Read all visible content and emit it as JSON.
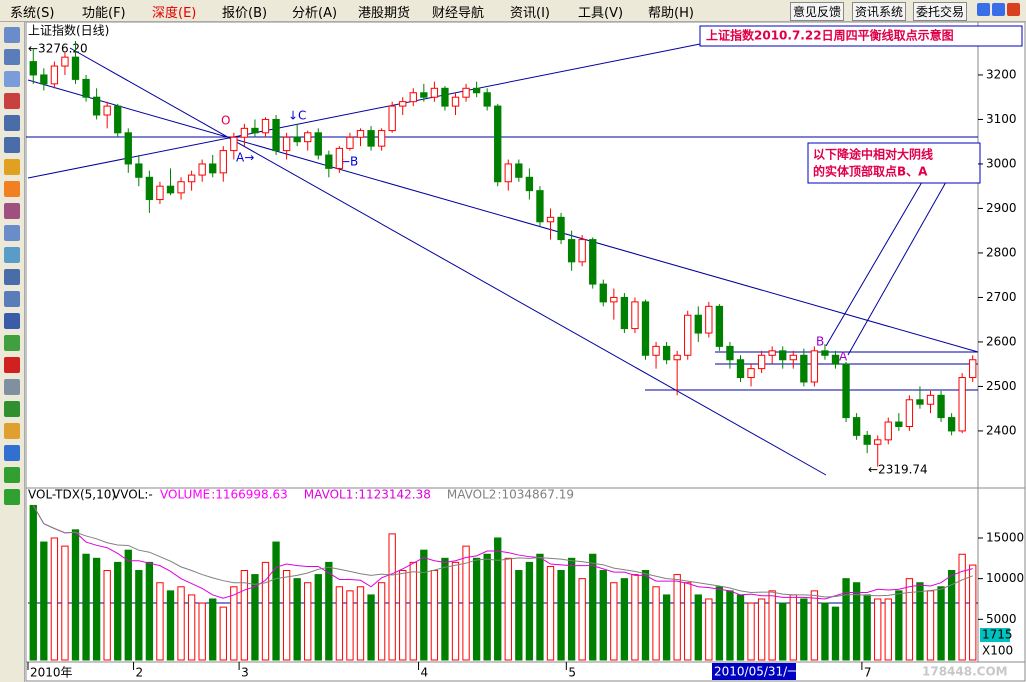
{
  "menu": {
    "items": [
      "系统(S)",
      "功能(F)",
      "深度(E)",
      "报价(B)",
      "分析(A)",
      "港股期货",
      "财经导航",
      "资讯(I)",
      "工具(V)",
      "帮助(H)"
    ],
    "buttons": [
      "意见反馈",
      "资讯系统",
      "委托交易"
    ]
  },
  "chart_data": [
    {
      "type": "candlestick",
      "title": "上证指数(日线)",
      "up_color": "#ff0000",
      "down_color": "#008000",
      "ylim": [
        2274,
        3319
      ],
      "yticks": [
        2400,
        2500,
        2600,
        2700,
        2800,
        2900,
        3000,
        3100,
        3200
      ],
      "xticks": [
        {
          "value": 0,
          "label": "2010年"
        },
        {
          "value": 10,
          "label": "2"
        },
        {
          "value": 20,
          "label": "3"
        },
        {
          "value": 37,
          "label": "4"
        },
        {
          "value": 51,
          "label": "5"
        },
        {
          "value": 79,
          "label": "7"
        }
      ],
      "candles": [
        [
          3230,
          3260,
          3180,
          3200
        ],
        [
          3200,
          3215,
          3165,
          3180
        ],
        [
          3180,
          3230,
          3170,
          3220
        ],
        [
          3220,
          3250,
          3200,
          3240
        ],
        [
          3240,
          3276.2,
          3180,
          3190
        ],
        [
          3190,
          3200,
          3140,
          3150
        ],
        [
          3150,
          3170,
          3100,
          3110
        ],
        [
          3110,
          3140,
          3080,
          3130
        ],
        [
          3130,
          3135,
          3060,
          3070
        ],
        [
          3070,
          3080,
          2980,
          3000
        ],
        [
          3000,
          3020,
          2950,
          2970
        ],
        [
          2970,
          2985,
          2890,
          2920
        ],
        [
          2920,
          2960,
          2910,
          2950
        ],
        [
          2950,
          2990,
          2930,
          2935
        ],
        [
          2935,
          2970,
          2920,
          2960
        ],
        [
          2960,
          2985,
          2940,
          2975
        ],
        [
          2975,
          3010,
          2960,
          3000
        ],
        [
          3000,
          3020,
          2970,
          2980
        ],
        [
          2980,
          3040,
          2960,
          3030
        ],
        [
          3030,
          3070,
          3010,
          3060
        ],
        [
          3060,
          3090,
          3040,
          3080
        ],
        [
          3080,
          3100,
          3060,
          3070
        ],
        [
          3070,
          3105,
          3060,
          3100
        ],
        [
          3100,
          3110,
          3020,
          3030
        ],
        [
          3030,
          3070,
          3010,
          3060
        ],
        [
          3060,
          3090,
          3040,
          3050
        ],
        [
          3050,
          3075,
          3030,
          3070
        ],
        [
          3070,
          3080,
          3010,
          3020
        ],
        [
          3020,
          3030,
          2970,
          2990
        ],
        [
          2990,
          3040,
          2980,
          3035
        ],
        [
          3035,
          3070,
          3030,
          3060
        ],
        [
          3060,
          3080,
          3040,
          3075
        ],
        [
          3075,
          3085,
          3030,
          3040
        ],
        [
          3040,
          3080,
          3030,
          3075
        ],
        [
          3075,
          3140,
          3070,
          3130
        ],
        [
          3130,
          3150,
          3110,
          3140
        ],
        [
          3140,
          3170,
          3130,
          3160
        ],
        [
          3160,
          3180,
          3140,
          3150
        ],
        [
          3150,
          3185,
          3140,
          3170
        ],
        [
          3170,
          3175,
          3120,
          3130
        ],
        [
          3130,
          3160,
          3110,
          3150
        ],
        [
          3150,
          3180,
          3140,
          3170
        ],
        [
          3170,
          3185,
          3150,
          3160
        ],
        [
          3160,
          3170,
          3120,
          3130
        ],
        [
          3130,
          3135,
          2950,
          2960
        ],
        [
          2960,
          3010,
          2940,
          3000
        ],
        [
          3000,
          3010,
          2960,
          2970
        ],
        [
          2970,
          2990,
          2920,
          2940
        ],
        [
          2940,
          2950,
          2860,
          2870
        ],
        [
          2870,
          2900,
          2830,
          2880
        ],
        [
          2880,
          2890,
          2820,
          2830
        ],
        [
          2830,
          2850,
          2760,
          2780
        ],
        [
          2780,
          2840,
          2770,
          2830
        ],
        [
          2830,
          2835,
          2720,
          2730
        ],
        [
          2730,
          2740,
          2680,
          2690
        ],
        [
          2690,
          2720,
          2650,
          2700
        ],
        [
          2700,
          2710,
          2620,
          2630
        ],
        [
          2630,
          2700,
          2620,
          2690
        ],
        [
          2690,
          2695,
          2560,
          2570
        ],
        [
          2570,
          2600,
          2540,
          2590
        ],
        [
          2590,
          2600,
          2550,
          2560
        ],
        [
          2560,
          2580,
          2480,
          2570
        ],
        [
          2570,
          2670,
          2560,
          2660
        ],
        [
          2660,
          2680,
          2600,
          2620
        ],
        [
          2620,
          2690,
          2610,
          2680
        ],
        [
          2680,
          2685,
          2580,
          2590
        ],
        [
          2590,
          2600,
          2540,
          2560
        ],
        [
          2560,
          2570,
          2510,
          2520
        ],
        [
          2520,
          2550,
          2500,
          2540
        ],
        [
          2540,
          2580,
          2530,
          2570
        ],
        [
          2570,
          2590,
          2550,
          2580
        ],
        [
          2580,
          2590,
          2540,
          2560
        ],
        [
          2560,
          2580,
          2540,
          2570
        ],
        [
          2570,
          2585,
          2500,
          2510
        ],
        [
          2510,
          2590,
          2500,
          2580
        ],
        [
          2580,
          2595,
          2560,
          2570
        ],
        [
          2570,
          2580,
          2540,
          2550
        ],
        [
          2550,
          2555,
          2420,
          2430
        ],
        [
          2430,
          2440,
          2380,
          2390
        ],
        [
          2390,
          2400,
          2350,
          2370
        ],
        [
          2370,
          2390,
          2319.74,
          2380
        ],
        [
          2380,
          2430,
          2370,
          2420
        ],
        [
          2420,
          2440,
          2400,
          2410
        ],
        [
          2410,
          2480,
          2400,
          2470
        ],
        [
          2470,
          2500,
          2450,
          2460
        ],
        [
          2460,
          2490,
          2440,
          2480
        ],
        [
          2480,
          2490,
          2420,
          2430
        ],
        [
          2430,
          2440,
          2390,
          2400
        ],
        [
          2400,
          2530,
          2395,
          2520
        ],
        [
          2520,
          2570,
          2510,
          2560
        ]
      ],
      "annotations": [
        "←3276.20",
        "O",
        "A→",
        "↓C",
        "←B",
        "B",
        "A",
        "←2319.74"
      ],
      "note_title": "上证指数2010.7.22日周四平衡线取点示意图",
      "note_lines": [
        "以下降途中相对大阴线",
        "的实体顶部取点B、A"
      ]
    },
    {
      "type": "volume",
      "title": "VOL-TDX(5,10)",
      "subtitle": "VVOL:-",
      "ylim": [
        0,
        19300
      ],
      "yticks": [
        5000,
        10000,
        15000
      ],
      "series": [
        {
          "name": "VOLUME",
          "value_label": "1166998.63",
          "color": "#ff00ff",
          "values": [
            19000,
            14500,
            15000,
            14000,
            16000,
            13000,
            12500,
            11000,
            12000,
            13500,
            11000,
            12000,
            9500,
            8500,
            9000,
            8000,
            7000,
            7500,
            6500,
            9000,
            11000,
            10500,
            12000,
            14500,
            11000,
            10000,
            9500,
            10500,
            12000,
            9000,
            8500,
            9000,
            8000,
            9500,
            15500,
            11000,
            12000,
            13500,
            11000,
            12500,
            12000,
            14000,
            12500,
            13000,
            15000,
            12500,
            11000,
            12000,
            13000,
            11500,
            11000,
            12500,
            10000,
            13000,
            11000,
            9500,
            10000,
            10500,
            11000,
            9000,
            8000,
            10500,
            9500,
            8000,
            7500,
            9000,
            8500,
            8000,
            7000,
            7500,
            8500,
            7000,
            8000,
            7500,
            8500,
            7000,
            6500,
            10000,
            9500,
            8000,
            7500,
            7500,
            8500,
            10000,
            9500,
            8500,
            9000,
            11000,
            13000,
            11669.99
          ]
        },
        {
          "name": "MAVOL1",
          "value_label": "1123142.38",
          "color": "#e000e0",
          "values": [
            19000,
            16750,
            16167,
            15625,
            15700,
            14500,
            14100,
            13800,
            13100,
            12200,
            12200,
            11900,
            11600,
            10900,
            10000,
            9400,
            8800,
            8000,
            7600,
            8000,
            8600,
            9000,
            9800,
            11400,
            11800,
            11600,
            11500,
            11500,
            10700,
            9900,
            9900,
            9800,
            9000,
            10100,
            10600,
            11200,
            11900,
            12600,
            12200,
            12000,
            12200,
            12600,
            12800,
            13400,
            13400,
            13200,
            12900,
            12700,
            12600,
            11800,
            11700,
            11600,
            11600,
            11600,
            11200,
            10800,
            10800,
            10400,
            10400,
            9700,
            9700,
            9700,
            9400,
            9000,
            8900,
            8700,
            8500,
            8000,
            8100,
            7900,
            7900,
            7700,
            7700,
            7700,
            7600,
            7500,
            7900,
            8300,
            8300,
            8300,
            8700,
            8600,
            8700,
            9000,
            9200,
            9100,
            9500,
            10400,
            10900,
            11231.42
          ]
        },
        {
          "name": "MAVOL2",
          "value_label": "1034867.19",
          "color": "#808080",
          "values": [
            19000,
            16750,
            16167,
            15625,
            15700,
            15250,
            14900,
            14412,
            14144,
            14080,
            13500,
            13250,
            12700,
            12150,
            11450,
            11000,
            10500,
            10100,
            9750,
            9500,
            9500,
            9300,
            9500,
            10000,
            10200,
            10400,
            10700,
            11150,
            11400,
            11150,
            10900,
            10600,
            10400,
            10550,
            10450,
            10650,
            10850,
            10750,
            11050,
            11400,
            11650,
            11900,
            12300,
            12400,
            12250,
            12400,
            12550,
            12500,
            12600,
            12500,
            12400,
            12200,
            12100,
            11900,
            11700,
            11300,
            11100,
            10900,
            10600,
            10300,
            10000,
            9900,
            9700,
            9500,
            9300,
            9100,
            8850,
            8500,
            8300,
            8350,
            8350,
            8100,
            8000,
            8000,
            7950,
            7750,
            7800,
            8000,
            8050,
            7950,
            7900,
            7950,
            8150,
            8300,
            8400,
            8550,
            8700,
            9250,
            9850,
            10348.67
          ]
        }
      ]
    }
  ],
  "status": {
    "cursor_date": "2010/05/31/一",
    "last_volume": "1715",
    "unit": "X100",
    "watermark": "178448.COM"
  }
}
